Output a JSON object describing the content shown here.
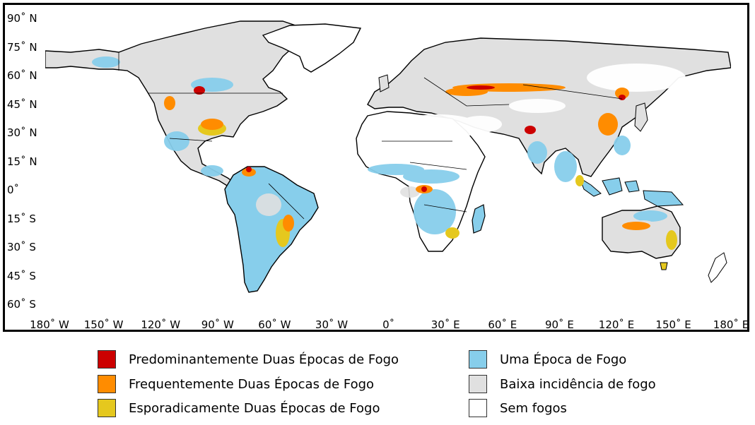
{
  "map": {
    "lat_labels": [
      "90˚ N",
      "75˚ N",
      "60˚ N",
      "45˚ N",
      "30˚ N",
      "15˚ N",
      "0˚",
      "15˚ S",
      "30˚ S",
      "45˚ S",
      "60˚ S"
    ],
    "lon_labels": [
      "180˚ W",
      "150˚ W",
      "120˚ W",
      "90˚ W",
      "60˚ W",
      "30˚ W",
      "0˚",
      "30˚ E",
      "60˚ E",
      "90˚ E",
      "120˚ E",
      "150˚ E",
      "180˚ E"
    ],
    "colors": {
      "predominantly_two": "#cc0000",
      "frequently_two": "#ff8c00",
      "sporadically_two": "#e5c81e",
      "one_season": "#87ceeb",
      "low_incidence": "#e0e0e0",
      "no_fires": "#ffffff",
      "coastline": "#000000"
    }
  },
  "legend": {
    "items": [
      {
        "label": "Predominantemente Duas Épocas de Fogo",
        "color": "#cc0000"
      },
      {
        "label": "Frequentemente Duas Épocas de Fogo",
        "color": "#ff8c00"
      },
      {
        "label": "Esporadicamente Duas Épocas de Fogo",
        "color": "#e5c81e"
      },
      {
        "label": "Uma Época de Fogo",
        "color": "#87ceeb"
      },
      {
        "label": "Baixa incidência de fogo",
        "color": "#e0e0e0"
      },
      {
        "label": "Sem fogos",
        "color": "#ffffff"
      }
    ]
  }
}
